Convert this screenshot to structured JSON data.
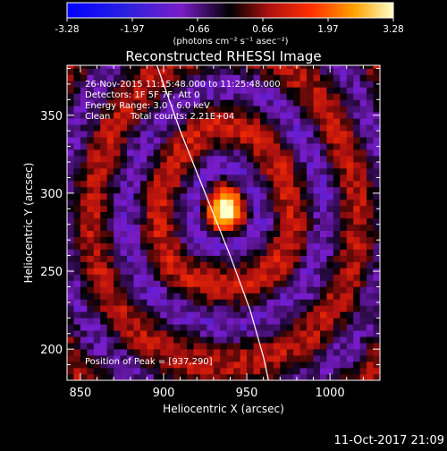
{
  "chart_data": {
    "type": "heatmap",
    "title": "Reconstructed RHESSI Image",
    "xlabel": "Heliocentric X (arcsec)",
    "ylabel": "Heliocentric Y (arcsec)",
    "xlim": [
      842,
      1030
    ],
    "ylim": [
      180,
      382
    ],
    "x_ticks": [
      850,
      900,
      950,
      1000
    ],
    "y_ticks": [
      200,
      250,
      300,
      350
    ],
    "colorbar": {
      "range": [
        -3.28,
        3.28
      ],
      "ticks": [
        "-3.28",
        "-1.97",
        "-0.66",
        "0.66",
        "1.97",
        "3.28"
      ],
      "units_label": "(photons cm⁻² s⁻¹ asec⁻²)",
      "colormap": "blue-purple-black-red-orange-yellow-white"
    },
    "annotations": {
      "time_range": "26-Nov-2015 11:15:48.000 to 11:25:48.000",
      "detectors": "Detectors: 1F 5F 7F, Att 0",
      "energy_range": "Energy Range: 3.0 - 6.0 keV",
      "clean_label": "Clean",
      "total_counts": "Total counts: 2.21E+04",
      "peak": "Position of Peak = [937,290]"
    },
    "peak_position": [
      937,
      290
    ],
    "peak_value": 3.28,
    "limb_curve": [
      [
        896,
        382
      ],
      [
        910,
        340
      ],
      [
        925,
        300
      ],
      [
        940,
        260
      ],
      [
        952,
        225
      ],
      [
        960,
        195
      ],
      [
        963,
        180
      ]
    ],
    "grid": false,
    "legend": "none"
  },
  "footer": {
    "timestamp": "11-Oct-2017 21:09"
  },
  "colors": {
    "background": "#000000",
    "axes": "#ffffff",
    "limb": "#ffffff"
  }
}
